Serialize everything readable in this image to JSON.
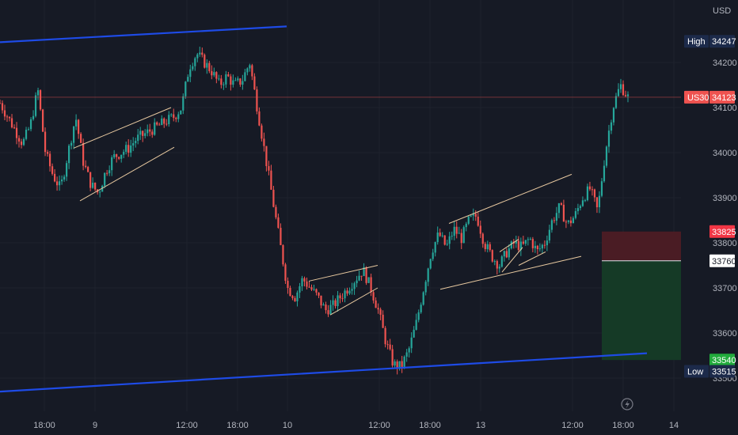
{
  "chart_data": {
    "type": "candlestick",
    "symbol": "US30",
    "currency": "USD",
    "y_ticks": [
      33500,
      33600,
      33700,
      33800,
      33900,
      34000,
      34100,
      34200
    ],
    "x_ticks": [
      "18:00",
      "9",
      "12:00",
      "18:00",
      "10",
      "12:00",
      "18:00",
      "13",
      "12:00",
      "18:00",
      "14"
    ],
    "last_price": 34123,
    "high": {
      "label": "High",
      "value": 34247
    },
    "low": {
      "label": "Low",
      "value": 33515
    },
    "position": {
      "stop_loss": 33825,
      "entry": 33760,
      "take_profit": 33540
    },
    "path_points": [
      34110,
      34080,
      34050,
      34020,
      34060,
      34140,
      34000,
      33950,
      33920,
      34000,
      34080,
      33980,
      33930,
      33910,
      33960,
      33990,
      34000,
      34010,
      34030,
      34040,
      34050,
      34060,
      34070,
      34080,
      34100,
      34190,
      34220,
      34200,
      34180,
      34150,
      34170,
      34150,
      34160,
      34200,
      34100,
      34000,
      33900,
      33800,
      33700,
      33680,
      33720,
      33700,
      33680,
      33650,
      33660,
      33680,
      33700,
      33720,
      33740,
      33700,
      33650,
      33580,
      33530,
      33525,
      33560,
      33620,
      33700,
      33780,
      33820,
      33790,
      33830,
      33810,
      33850,
      33860,
      33800,
      33770,
      33750,
      33780,
      33800,
      33790,
      33810,
      33780,
      33800,
      33850,
      33880,
      33840,
      33860,
      33900,
      33920,
      33870,
      34000,
      34100,
      34150,
      34123
    ],
    "trendlines": [
      {
        "x1": 0,
        "y1": 34245,
        "x2": 362,
        "y2": 34280,
        "kind": "support-resistance"
      },
      {
        "x1": 0,
        "y1": 33470,
        "x2": 817,
        "y2": 33555,
        "kind": "support-resistance"
      },
      {
        "x1": 93,
        "y1": 34010,
        "x2": 216,
        "y2": 34100,
        "kind": "channel"
      },
      {
        "x1": 101,
        "y1": 33893,
        "x2": 220,
        "y2": 34012,
        "kind": "channel"
      },
      {
        "x1": 390,
        "y1": 33715,
        "x2": 477,
        "y2": 33750,
        "kind": "channel"
      },
      {
        "x1": 417,
        "y1": 33640,
        "x2": 477,
        "y2": 33700,
        "kind": "channel"
      },
      {
        "x1": 567,
        "y1": 33843,
        "x2": 722,
        "y2": 33952,
        "kind": "channel"
      },
      {
        "x1": 556,
        "y1": 33697,
        "x2": 734,
        "y2": 33770,
        "kind": "channel"
      },
      {
        "x1": 631,
        "y1": 33780,
        "x2": 655,
        "y2": 33808,
        "kind": "channel"
      },
      {
        "x1": 634,
        "y1": 33735,
        "x2": 660,
        "y2": 33790,
        "kind": "channel"
      },
      {
        "x1": 655,
        "y1": 33750,
        "x2": 689,
        "y2": 33780,
        "kind": "channel"
      }
    ]
  },
  "ui": {
    "colors": {
      "background": "#161a25",
      "up": "#26a69a",
      "down": "#ef5350",
      "grid": "#1e222d",
      "trend_blue": "#1e4be6",
      "channel": "#e8c9a0",
      "stop_zone": "#4a1c24",
      "target_zone": "#153a26"
    },
    "icons": [
      "lightning-icon"
    ]
  }
}
